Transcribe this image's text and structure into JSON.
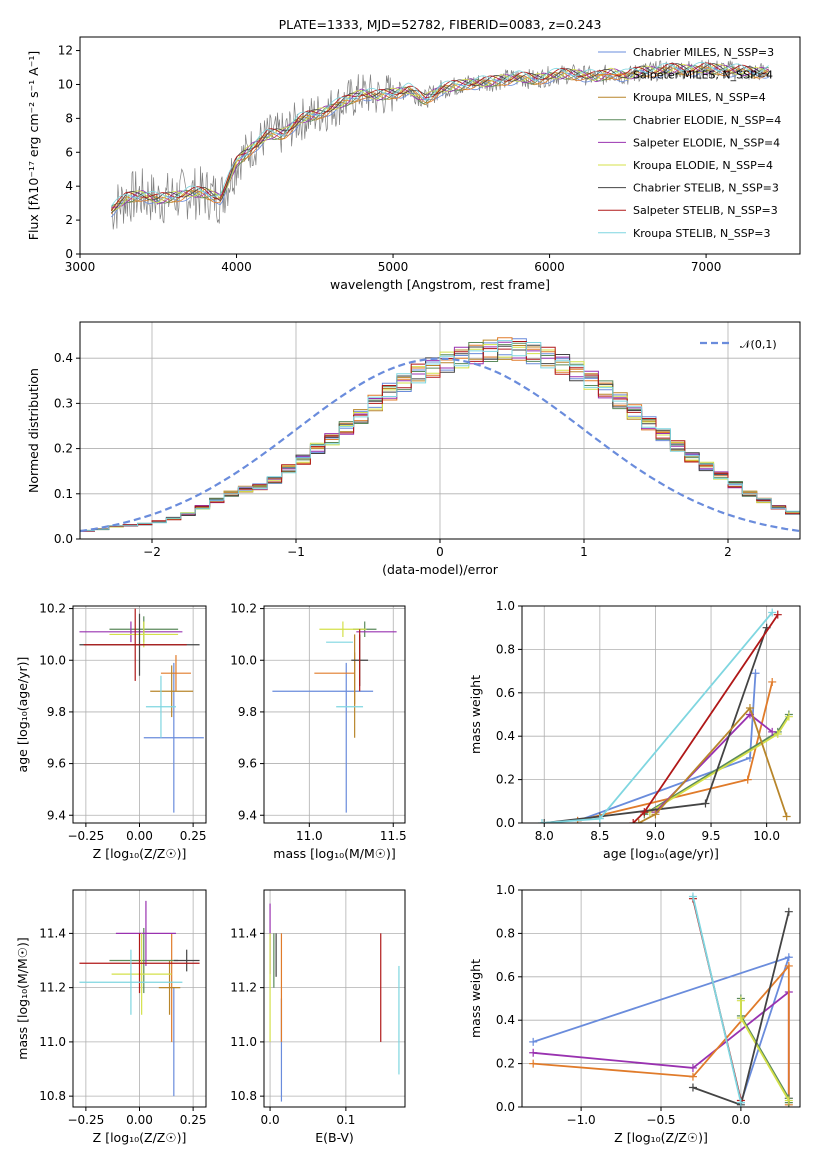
{
  "series_styles": [
    {
      "label": "Chabrier MILES, N_SSP=3",
      "color": "#6a8cdc"
    },
    {
      "label": "Salpeter MILES, N_SSP=4",
      "color": "#e07b2a"
    },
    {
      "label": "Kroupa MILES, N_SSP=4",
      "color": "#b8862b"
    },
    {
      "label": "Chabrier ELODIE, N_SSP=4",
      "color": "#5b8a5b"
    },
    {
      "label": "Salpeter ELODIE, N_SSP=4",
      "color": "#9932b0"
    },
    {
      "label": "Kroupa ELODIE, N_SSP=4",
      "color": "#d4e04a"
    },
    {
      "label": "Chabrier STELIB, N_SSP=3",
      "color": "#444444"
    },
    {
      "label": "Salpeter STELIB, N_SSP=3",
      "color": "#b01818"
    },
    {
      "label": "Kroupa STELIB, N_SSP=3",
      "color": "#7fd6e0"
    }
  ],
  "chart_data": [
    {
      "id": "spectrum",
      "type": "line",
      "title": "PLATE=1333, MJD=52782, FIBERID=0083, z=0.243",
      "xlabel": "wavelength [Angstrom, rest frame]",
      "ylabel": "Flux [fλ10⁻¹⁷ erg cm⁻² s⁻¹ A⁻¹]",
      "xlim": [
        3000,
        7600
      ],
      "ylim": [
        0,
        12.8
      ],
      "xticks": [
        3000,
        4000,
        5000,
        6000,
        7000
      ],
      "yticks": [
        0,
        2,
        4,
        6,
        8,
        10,
        12
      ],
      "grid": false,
      "legend_position": "right",
      "data_color": "#808080",
      "model_points": [
        {
          "x": 3200,
          "y": 2.6
        },
        {
          "x": 3300,
          "y": 3.3
        },
        {
          "x": 3400,
          "y": 3.5
        },
        {
          "x": 3500,
          "y": 3.2
        },
        {
          "x": 3600,
          "y": 3.4
        },
        {
          "x": 3700,
          "y": 3.6
        },
        {
          "x": 3800,
          "y": 3.6
        },
        {
          "x": 3900,
          "y": 3.3
        },
        {
          "x": 4000,
          "y": 5.4
        },
        {
          "x": 4100,
          "y": 6.3
        },
        {
          "x": 4200,
          "y": 7.0
        },
        {
          "x": 4300,
          "y": 7.1
        },
        {
          "x": 4400,
          "y": 7.9
        },
        {
          "x": 4500,
          "y": 8.2
        },
        {
          "x": 4600,
          "y": 8.6
        },
        {
          "x": 4700,
          "y": 9.0
        },
        {
          "x": 4800,
          "y": 9.5
        },
        {
          "x": 4900,
          "y": 9.3
        },
        {
          "x": 5000,
          "y": 9.5
        },
        {
          "x": 5100,
          "y": 9.7
        },
        {
          "x": 5200,
          "y": 9.1
        },
        {
          "x": 5300,
          "y": 9.7
        },
        {
          "x": 5400,
          "y": 9.9
        },
        {
          "x": 5500,
          "y": 10.1
        },
        {
          "x": 5600,
          "y": 10.1
        },
        {
          "x": 5700,
          "y": 10.3
        },
        {
          "x": 5800,
          "y": 10.4
        },
        {
          "x": 5900,
          "y": 10.3
        },
        {
          "x": 6000,
          "y": 10.5
        },
        {
          "x": 6100,
          "y": 10.6
        },
        {
          "x": 6200,
          "y": 10.6
        },
        {
          "x": 6300,
          "y": 10.4
        },
        {
          "x": 6400,
          "y": 10.7
        },
        {
          "x": 6500,
          "y": 10.5
        },
        {
          "x": 6600,
          "y": 10.8
        },
        {
          "x": 6700,
          "y": 10.8
        },
        {
          "x": 6800,
          "y": 10.9
        },
        {
          "x": 6900,
          "y": 10.9
        },
        {
          "x": 7000,
          "y": 10.9
        },
        {
          "x": 7100,
          "y": 10.9
        },
        {
          "x": 7200,
          "y": 10.8
        },
        {
          "x": 7300,
          "y": 10.7
        },
        {
          "x": 7400,
          "y": 10.8
        }
      ]
    },
    {
      "id": "residual-hist",
      "type": "step",
      "xlabel": "(data-model)/error",
      "ylabel": "Normed distribution",
      "xlim": [
        -2.5,
        2.5
      ],
      "ylim": [
        0,
        0.48
      ],
      "xticks": [
        -2,
        -1,
        0,
        1,
        2
      ],
      "yticks": [
        0.0,
        0.1,
        0.2,
        0.3,
        0.4
      ],
      "grid": true,
      "legend_position": "top-right",
      "reference_curve": {
        "label": "𝒩(0,1)",
        "color": "#6a8cdc",
        "style": "dashed"
      },
      "bin_edges_start": -2.5,
      "bin_width": 0.1,
      "bin_values": [
        0.018,
        0.022,
        0.028,
        0.03,
        0.033,
        0.038,
        0.045,
        0.055,
        0.07,
        0.085,
        0.1,
        0.11,
        0.115,
        0.13,
        0.155,
        0.175,
        0.2,
        0.22,
        0.245,
        0.27,
        0.3,
        0.325,
        0.345,
        0.365,
        0.378,
        0.39,
        0.4,
        0.41,
        0.415,
        0.42,
        0.418,
        0.41,
        0.4,
        0.385,
        0.37,
        0.35,
        0.33,
        0.305,
        0.28,
        0.255,
        0.23,
        0.205,
        0.18,
        0.16,
        0.14,
        0.12,
        0.1,
        0.085,
        0.07,
        0.058,
        0.048
      ]
    },
    {
      "id": "z-age",
      "type": "errorbar",
      "xlabel": "Z [log₁₀(Z/Z☉)]",
      "ylabel": "age  [log₁₀(age/yr)]",
      "xlim": [
        -0.31,
        0.31
      ],
      "ylim": [
        9.37,
        10.21
      ],
      "xticks": [
        -0.25,
        0.0,
        0.25
      ],
      "xticklabels": [
        "−0.25",
        "0.00",
        "0.25"
      ],
      "yticks": [
        9.4,
        9.6,
        9.8,
        10.0,
        10.2
      ],
      "grid": true,
      "points": [
        {
          "s": 0,
          "x": 0.16,
          "y": 9.7,
          "xerr": 0.14,
          "yerr": 0.29
        },
        {
          "s": 1,
          "x": 0.17,
          "y": 9.95,
          "xerr": 0.07,
          "yerr": 0.07
        },
        {
          "s": 2,
          "x": 0.15,
          "y": 9.88,
          "xerr": 0.1,
          "yerr": 0.1
        },
        {
          "s": 3,
          "x": 0.02,
          "y": 10.12,
          "xerr": 0.16,
          "yerr": 0.05
        },
        {
          "s": 4,
          "x": -0.04,
          "y": 10.11,
          "xerr": 0.24,
          "yerr": 0.04
        },
        {
          "s": 5,
          "x": 0.02,
          "y": 10.1,
          "xerr": 0.16,
          "yerr": 0.05
        },
        {
          "s": 6,
          "x": 0.0,
          "y": 10.06,
          "xerr": 0.28,
          "yerr": 0.12
        },
        {
          "s": 7,
          "x": -0.02,
          "y": 10.06,
          "xerr": 0.24,
          "yerr": 0.14
        },
        {
          "s": 8,
          "x": 0.1,
          "y": 9.82,
          "xerr": 0.07,
          "yerr": 0.12
        }
      ]
    },
    {
      "id": "mass-age",
      "type": "errorbar",
      "xlabel": "mass [log₁₀(M/M☉)]",
      "ylabel": "",
      "xlim": [
        10.73,
        11.57
      ],
      "ylim": [
        9.37,
        10.21
      ],
      "xticks": [
        11.0,
        11.5
      ],
      "xticklabels": [
        "11.0",
        "11.5"
      ],
      "yticks": [
        9.4,
        9.6,
        9.8,
        10.0,
        10.2
      ],
      "grid": true,
      "points": [
        {
          "s": 0,
          "x": 11.08,
          "y": 9.88,
          "xerr": 0.3,
          "yerr": 0.0
        },
        {
          "s": 0,
          "x": 11.22,
          "y": 9.7,
          "xerr": 0.0,
          "yerr": 0.29
        },
        {
          "s": 1,
          "x": 11.15,
          "y": 9.95,
          "xerr": 0.12,
          "yerr": 0.0
        },
        {
          "s": 1,
          "x": 11.27,
          "y": 9.93,
          "xerr": 0.0,
          "yerr": 0.1
        },
        {
          "s": 2,
          "x": 11.27,
          "y": 9.9,
          "xerr": 0.0,
          "yerr": 0.2
        },
        {
          "s": 3,
          "x": 11.33,
          "y": 10.12,
          "xerr": 0.07,
          "yerr": 0.03
        },
        {
          "s": 4,
          "x": 11.4,
          "y": 10.11,
          "xerr": 0.12,
          "yerr": 0.0
        },
        {
          "s": 5,
          "x": 11.2,
          "y": 10.12,
          "xerr": 0.14,
          "yerr": 0.03
        },
        {
          "s": 6,
          "x": 11.3,
          "y": 10.0,
          "xerr": 0.05,
          "yerr": 0.1
        },
        {
          "s": 7,
          "x": 11.3,
          "y": 10.0,
          "xerr": 0.0,
          "yerr": 0.12
        },
        {
          "s": 8,
          "x": 11.18,
          "y": 10.07,
          "xerr": 0.08,
          "yerr": 0.0
        },
        {
          "s": 8,
          "x": 11.24,
          "y": 9.82,
          "xerr": 0.08,
          "yerr": 0.0
        }
      ]
    },
    {
      "id": "age-weight",
      "type": "line",
      "xlabel": "age  [log₁₀(age/yr)]",
      "ylabel": "mass weight",
      "xlim": [
        7.8,
        10.3
      ],
      "ylim": [
        0,
        1.0
      ],
      "xticks": [
        8.0,
        8.5,
        9.0,
        9.5,
        10.0
      ],
      "yticks": [
        0.0,
        0.2,
        0.4,
        0.6,
        0.8,
        1.0
      ],
      "grid": true,
      "series": [
        {
          "s": 0,
          "x": [
            8.3,
            9.85,
            9.9
          ],
          "y": [
            0.01,
            0.3,
            0.69
          ]
        },
        {
          "s": 1,
          "x": [
            8.3,
            9.83,
            10.05
          ],
          "y": [
            0.01,
            0.2,
            0.65
          ]
        },
        {
          "s": 3,
          "x": [
            8.9,
            10.1,
            10.2
          ],
          "y": [
            0.04,
            0.42,
            0.5
          ]
        },
        {
          "s": 5,
          "x": [
            8.95,
            10.1,
            10.2
          ],
          "y": [
            0.05,
            0.41,
            0.49
          ]
        },
        {
          "s": 4,
          "x": [
            9.0,
            9.85,
            10.05
          ],
          "y": [
            0.05,
            0.5,
            0.42
          ]
        },
        {
          "s": 6,
          "x": [
            8.0,
            8.5,
            9.45,
            10.0
          ],
          "y": [
            0.0,
            0.03,
            0.09,
            0.9
          ]
        },
        {
          "s": 7,
          "x": [
            8.8,
            8.9,
            10.1
          ],
          "y": [
            0.0,
            0.05,
            0.96
          ]
        },
        {
          "s": 8,
          "x": [
            7.98,
            8.5,
            10.05
          ],
          "y": [
            0.0,
            0.02,
            0.97
          ]
        },
        {
          "s": 2,
          "x": [
            8.85,
            9.0,
            9.85,
            10.18
          ],
          "y": [
            0.0,
            0.04,
            0.53,
            0.03
          ]
        }
      ]
    },
    {
      "id": "z-mass",
      "type": "errorbar",
      "xlabel": "Z [log₁₀(Z/Z☉)]",
      "ylabel": "mass [log₁₀(M/M☉)]",
      "xlim": [
        -0.31,
        0.31
      ],
      "ylim": [
        10.76,
        11.56
      ],
      "xticks": [
        -0.25,
        0.0,
        0.25
      ],
      "xticklabels": [
        "−0.25",
        "0.00",
        "0.25"
      ],
      "yticks": [
        10.8,
        11.0,
        11.2,
        11.4
      ],
      "grid": true,
      "points": [
        {
          "s": 0,
          "x": 0.16,
          "y": 11.0,
          "xerr": 0.0,
          "yerr": 0.2
        },
        {
          "s": 1,
          "x": 0.15,
          "y": 11.2,
          "xerr": 0.0,
          "yerr": 0.2
        },
        {
          "s": 2,
          "x": 0.14,
          "y": 11.2,
          "xerr": 0.05,
          "yerr": 0.1
        },
        {
          "s": 3,
          "x": 0.02,
          "y": 11.3,
          "xerr": 0.16,
          "yerr": 0.12
        },
        {
          "s": 4,
          "x": 0.03,
          "y": 11.4,
          "xerr": 0.14,
          "yerr": 0.12
        },
        {
          "s": 5,
          "x": 0.01,
          "y": 11.25,
          "xerr": 0.14,
          "yerr": 0.15
        },
        {
          "s": 6,
          "x": 0.22,
          "y": 11.3,
          "xerr": 0.06,
          "yerr": 0.04
        },
        {
          "s": 7,
          "x": 0.0,
          "y": 11.29,
          "xerr": 0.28,
          "yerr": 0.11
        },
        {
          "s": 8,
          "x": -0.04,
          "y": 11.22,
          "xerr": 0.24,
          "yerr": 0.12
        }
      ]
    },
    {
      "id": "ebv-mass",
      "type": "errorbar",
      "xlabel": "E(B-V)",
      "ylabel": "",
      "xlim": [
        -0.008,
        0.178
      ],
      "ylim": [
        10.76,
        11.56
      ],
      "xticks": [
        0.0,
        0.1
      ],
      "xticklabels": [
        "0.0",
        "0.1"
      ],
      "yticks": [
        10.8,
        11.0,
        11.2,
        11.4
      ],
      "grid": true,
      "points": [
        {
          "s": 0,
          "x": 0.015,
          "y": 10.97,
          "xerr": 0.0,
          "yerr": 0.19
        },
        {
          "s": 1,
          "x": 0.015,
          "y": 11.2,
          "xerr": 0.0,
          "yerr": 0.2
        },
        {
          "s": 3,
          "x": 0.005,
          "y": 11.3,
          "xerr": 0.0,
          "yerr": 0.1
        },
        {
          "s": 4,
          "x": 0.0,
          "y": 11.38,
          "xerr": 0.0,
          "yerr": 0.13
        },
        {
          "s": 5,
          "x": 0.0,
          "y": 11.2,
          "xerr": 0.0,
          "yerr": 0.2
        },
        {
          "s": 6,
          "x": 0.008,
          "y": 11.32,
          "xerr": 0.0,
          "yerr": 0.08
        },
        {
          "s": 7,
          "x": 0.146,
          "y": 11.2,
          "xerr": 0.0,
          "yerr": 0.2
        },
        {
          "s": 8,
          "x": 0.17,
          "y": 11.08,
          "xerr": 0.0,
          "yerr": 0.2
        }
      ]
    },
    {
      "id": "z-weight",
      "type": "line",
      "xlabel": "Z [log₁₀(Z/Z☉)]",
      "ylabel": "mass weight",
      "xlim": [
        -1.37,
        0.37
      ],
      "ylim": [
        0,
        1.0
      ],
      "xticks": [
        -1.0,
        -0.5,
        0.0
      ],
      "xticklabels": [
        "−1.0",
        "−0.5",
        "0.0"
      ],
      "yticks": [
        0.0,
        0.2,
        0.4,
        0.6,
        0.8,
        1.0
      ],
      "grid": true,
      "series": [
        {
          "s": 0,
          "x": [
            -1.3,
            0.3,
            0.0
          ],
          "y": [
            0.3,
            0.69,
            0.02
          ]
        },
        {
          "s": 4,
          "x": [
            -1.3,
            -0.3,
            0.3,
            0.3
          ],
          "y": [
            0.25,
            0.18,
            0.53,
            0.04
          ]
        },
        {
          "s": 1,
          "x": [
            -1.3,
            -0.3,
            0.3,
            0.3
          ],
          "y": [
            0.2,
            0.14,
            0.65,
            0.01
          ]
        },
        {
          "s": 3,
          "x": [
            0.0,
            0.0,
            0.3,
            0.3
          ],
          "y": [
            0.5,
            0.42,
            0.04,
            0.02
          ]
        },
        {
          "s": 5,
          "x": [
            0.0,
            0.0,
            0.3
          ],
          "y": [
            0.49,
            0.41,
            0.03
          ]
        },
        {
          "s": 6,
          "x": [
            -0.3,
            0.0,
            0.3
          ],
          "y": [
            0.09,
            0.01,
            0.9
          ]
        },
        {
          "s": 7,
          "x": [
            -0.3,
            0.0
          ],
          "y": [
            0.96,
            0.03
          ]
        },
        {
          "s": 8,
          "x": [
            -0.3,
            0.0
          ],
          "y": [
            0.97,
            0.02
          ]
        }
      ]
    }
  ]
}
